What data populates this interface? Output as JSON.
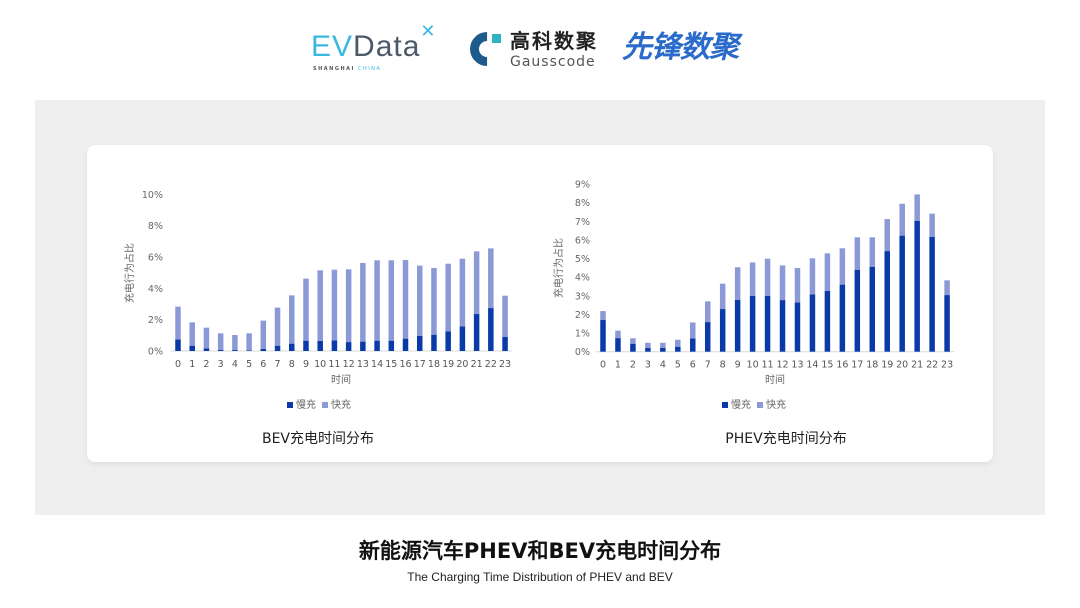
{
  "logos": {
    "evdata": {
      "text_ev": "EV",
      "text_data": "Data",
      "sub_a": "SHANGHAI",
      "sub_b": "CHINA"
    },
    "gausscode": {
      "cn": "高科数聚",
      "en": "Gausscode"
    },
    "xianfeng": {
      "text": "先锋数聚"
    }
  },
  "colors": {
    "slow": "#0a3aa8",
    "fast": "#8b9ad6",
    "panel": "#efefef"
  },
  "chart_data": [
    {
      "type": "bar",
      "stacked": true,
      "title": "BEV充电时间分布",
      "xlabel": "时间",
      "ylabel": "充电行为占比",
      "ylim": [
        0,
        10
      ],
      "yticks": [
        "0%",
        "2%",
        "4%",
        "6%",
        "8%",
        "10%"
      ],
      "ytick_values": [
        0,
        2,
        4,
        6,
        8,
        10
      ],
      "grid": false,
      "legend": "bottom",
      "categories": [
        "0",
        "1",
        "2",
        "3",
        "4",
        "5",
        "6",
        "7",
        "8",
        "9",
        "10",
        "11",
        "12",
        "13",
        "14",
        "15",
        "16",
        "17",
        "18",
        "19",
        "20",
        "21",
        "22",
        "23"
      ],
      "series": [
        {
          "name": "慢充",
          "values": [
            0.74,
            0.34,
            0.17,
            0.08,
            0.06,
            0.04,
            0.13,
            0.34,
            0.47,
            0.66,
            0.64,
            0.68,
            0.57,
            0.6,
            0.66,
            0.66,
            0.79,
            0.96,
            1.04,
            1.26,
            1.57,
            2.36,
            2.74,
            0.91
          ]
        },
        {
          "name": "快充",
          "values": [
            2.09,
            1.49,
            1.32,
            1.05,
            0.96,
            1.09,
            1.81,
            2.43,
            3.08,
            3.96,
            4.51,
            4.51,
            4.64,
            5.02,
            5.13,
            5.13,
            5.02,
            4.49,
            4.26,
            4.31,
            4.32,
            4.0,
            3.81,
            2.62
          ]
        }
      ]
    },
    {
      "type": "bar",
      "stacked": true,
      "title": "PHEV充电时间分布",
      "xlabel": "时间",
      "ylabel": "充电行为占比",
      "ylim": [
        0,
        9
      ],
      "yticks": [
        "0%",
        "1%",
        "2%",
        "3%",
        "4%",
        "5%",
        "6%",
        "7%",
        "8%",
        "9%"
      ],
      "ytick_values": [
        0,
        1,
        2,
        3,
        4,
        5,
        6,
        7,
        8,
        9
      ],
      "grid": false,
      "legend": "bottom",
      "categories": [
        "0",
        "1",
        "2",
        "3",
        "4",
        "5",
        "6",
        "7",
        "8",
        "9",
        "10",
        "11",
        "12",
        "13",
        "14",
        "15",
        "16",
        "17",
        "18",
        "19",
        "20",
        "21",
        "22",
        "23"
      ],
      "series": [
        {
          "name": "慢充",
          "values": [
            1.7,
            0.73,
            0.43,
            0.2,
            0.2,
            0.27,
            0.72,
            1.59,
            2.29,
            2.79,
            2.99,
            2.99,
            2.77,
            2.65,
            3.08,
            3.27,
            3.6,
            4.4,
            4.56,
            5.4,
            6.23,
            7.03,
            6.17,
            3.04
          ]
        },
        {
          "name": "快充",
          "values": [
            0.48,
            0.4,
            0.29,
            0.28,
            0.28,
            0.37,
            0.85,
            1.11,
            1.36,
            1.74,
            1.8,
            2.0,
            1.86,
            1.84,
            1.93,
            2.01,
            1.95,
            1.74,
            1.58,
            1.72,
            1.71,
            1.41,
            1.24,
            0.79
          ]
        }
      ]
    }
  ],
  "footer": {
    "title": "新能源汽车PHEV和BEV充电时间分布",
    "subtitle": "The Charging Time Distribution of PHEV and BEV"
  }
}
